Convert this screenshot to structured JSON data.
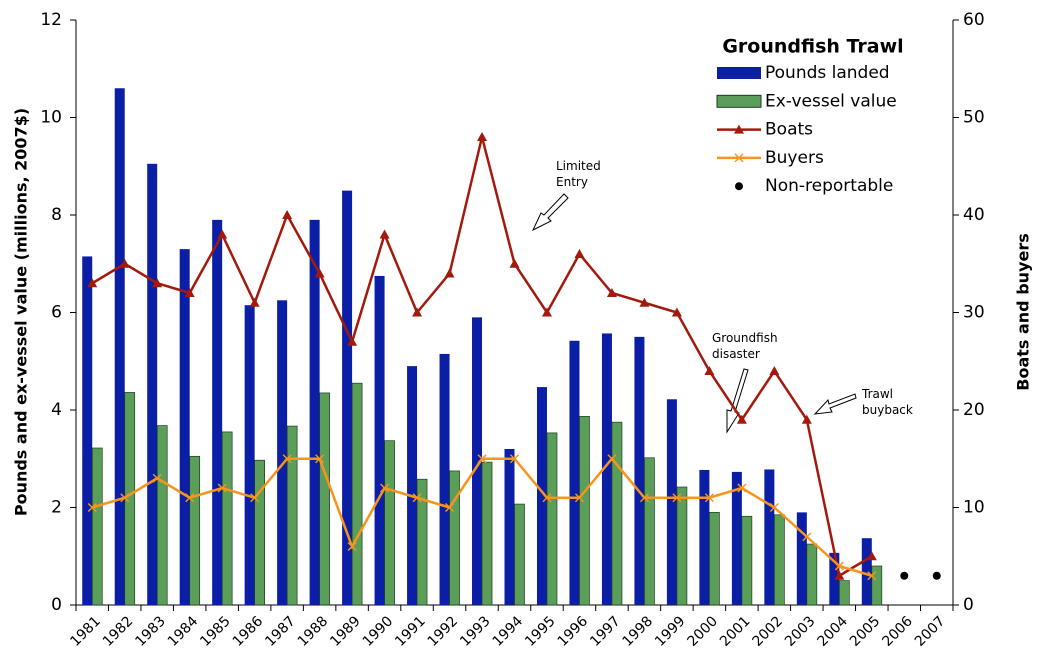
{
  "chart_data": {
    "type": "bar",
    "legend_title": "Groundfish Trawl",
    "ylabel": "Pounds and ex-vessel value (millions, 2007$)",
    "y2label": "Boats and buyers",
    "categories": [
      "1981",
      "1982",
      "1983",
      "1984",
      "1985",
      "1986",
      "1987",
      "1988",
      "1989",
      "1990",
      "1991",
      "1992",
      "1993",
      "1994",
      "1995",
      "1996",
      "1997",
      "1998",
      "1999",
      "2000",
      "2001",
      "2002",
      "2003",
      "2004",
      "2005",
      "2006",
      "2007"
    ],
    "series": [
      {
        "name": "Pounds landed",
        "type": "bar",
        "color": "#0a1fa5",
        "values": [
          7.15,
          10.6,
          9.05,
          7.3,
          7.9,
          6.15,
          6.25,
          7.9,
          8.5,
          6.75,
          4.9,
          5.15,
          5.9,
          3.2,
          4.47,
          5.42,
          5.57,
          5.5,
          4.22,
          2.77,
          2.73,
          2.78,
          1.9,
          1.07,
          1.37,
          null,
          null
        ]
      },
      {
        "name": "Ex-vessel value",
        "type": "bar",
        "color": "#5a9e5a",
        "values": [
          3.22,
          4.36,
          3.68,
          3.05,
          3.55,
          2.97,
          3.67,
          4.35,
          4.55,
          3.37,
          2.58,
          2.75,
          2.93,
          2.07,
          3.53,
          3.87,
          3.75,
          3.02,
          2.42,
          1.9,
          1.82,
          1.85,
          1.25,
          0.5,
          0.8,
          null,
          null
        ]
      },
      {
        "name": "Boats",
        "type": "line",
        "marker": "triangle",
        "axis": "y2",
        "color": "#a31a0c",
        "values": [
          33,
          35,
          33,
          32,
          38,
          31,
          40,
          34,
          27,
          38,
          30,
          34,
          48,
          35,
          30,
          36,
          32,
          31,
          30,
          24,
          19,
          24,
          19,
          3,
          5,
          null,
          null
        ]
      },
      {
        "name": "Buyers",
        "type": "line",
        "marker": "x",
        "axis": "y2",
        "color": "#f7941d",
        "values": [
          10,
          11,
          13,
          11,
          12,
          11,
          15,
          15,
          6,
          12,
          11,
          10,
          15,
          15,
          11,
          11,
          15,
          11,
          11,
          11,
          12,
          10,
          7,
          4,
          3,
          null,
          null
        ]
      },
      {
        "name": "Non-reportable",
        "type": "scatter",
        "marker": "circle",
        "axis": "y2",
        "color": "#000000",
        "values": [
          null,
          null,
          null,
          null,
          null,
          null,
          null,
          null,
          null,
          null,
          null,
          null,
          null,
          null,
          null,
          null,
          null,
          null,
          null,
          null,
          null,
          null,
          null,
          null,
          null,
          3,
          3
        ]
      }
    ],
    "annotations": [
      [
        "Limited",
        "Entry"
      ],
      [
        "Groundfish",
        "disaster"
      ],
      [
        "Trawl",
        "buyback"
      ]
    ],
    "ylim": [
      0,
      12
    ],
    "yticks": [
      0,
      2,
      4,
      6,
      8,
      10,
      12
    ],
    "y2lim": [
      0,
      60
    ],
    "y2ticks": [
      0,
      10,
      20,
      30,
      40,
      50,
      60
    ]
  }
}
